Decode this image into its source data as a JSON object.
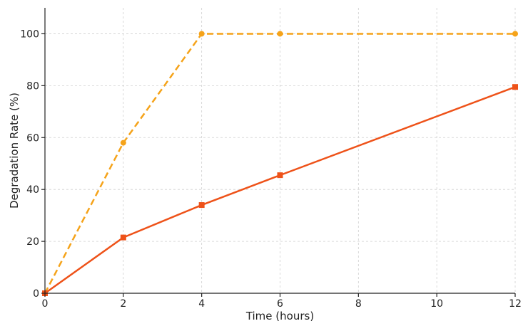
{
  "chart_data": {
    "type": "line",
    "title": "",
    "xlabel": "Time (hours)",
    "ylabel": "Degradation Rate (%)",
    "xlim": [
      0,
      12
    ],
    "ylim": [
      0,
      110
    ],
    "xticks": [
      0,
      2,
      4,
      6,
      8,
      10,
      12
    ],
    "yticks": [
      0,
      20,
      40,
      60,
      80,
      100
    ],
    "grid": true,
    "legend": "none",
    "series": [
      {
        "color": "#f5a31a",
        "line_style": "dashed",
        "marker": "circle",
        "x": [
          0,
          2,
          4,
          6,
          12
        ],
        "y": [
          0,
          58,
          100,
          100,
          100
        ]
      },
      {
        "color": "#ee5219",
        "line_style": "solid",
        "marker": "square",
        "x": [
          0,
          2,
          4,
          6,
          12
        ],
        "y": [
          0,
          21.5,
          34,
          45.5,
          79.5
        ]
      }
    ]
  }
}
